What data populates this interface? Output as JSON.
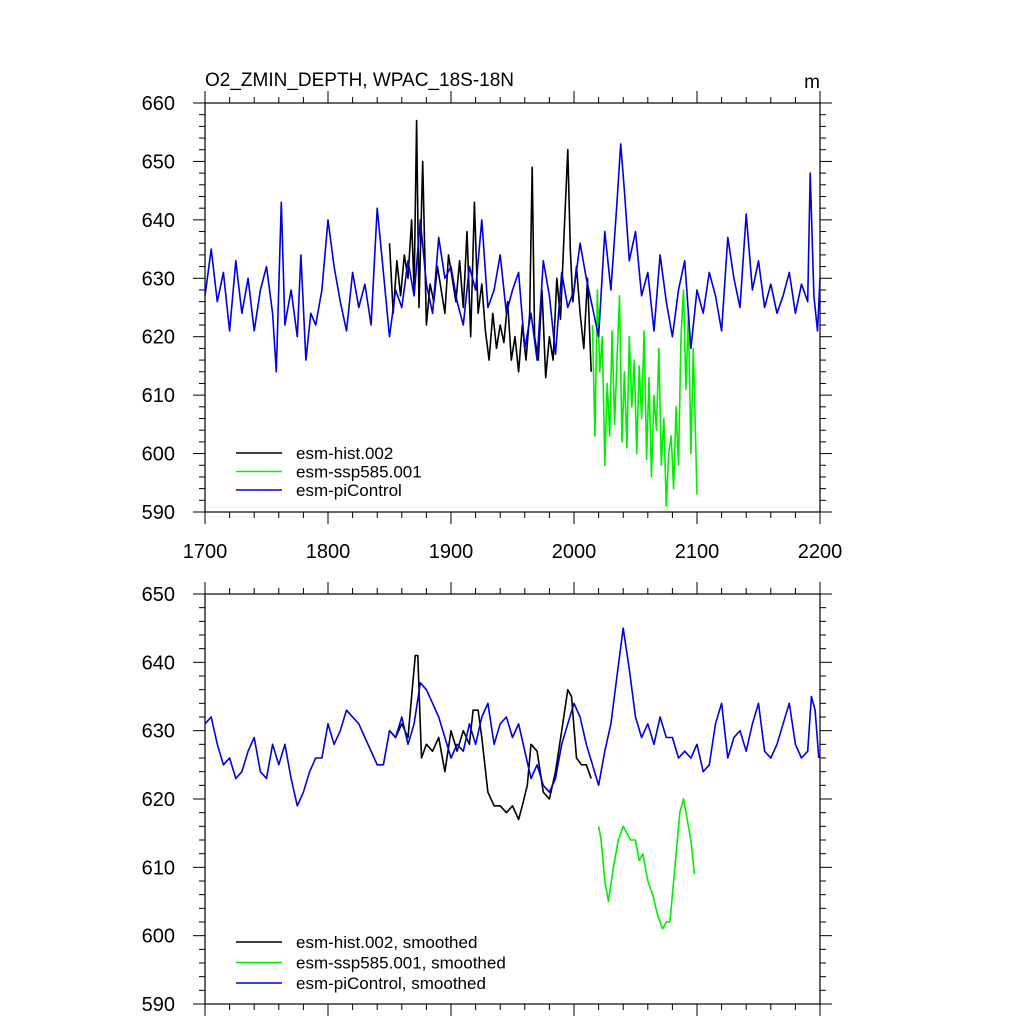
{
  "chart_data": [
    {
      "type": "line",
      "title": "O2_ZMIN_DEPTH, WPAC_18S-18N",
      "units": "m",
      "xlim": [
        1700,
        2200
      ],
      "ylim": [
        590,
        660
      ],
      "x_ticks": [
        1700,
        1800,
        1900,
        2000,
        2100,
        2200
      ],
      "x_tick_labels": [
        "1700",
        "1800",
        "1900",
        "2000",
        "2100",
        "2200"
      ],
      "y_ticks": [
        590,
        600,
        610,
        620,
        630,
        640,
        650,
        660
      ],
      "y_tick_labels": [
        "590",
        "600",
        "610",
        "620",
        "630",
        "640",
        "650",
        "660"
      ],
      "legend": [
        "esm-hist.002",
        "esm-ssp585.001",
        "esm-piControl"
      ],
      "series": [
        {
          "name": "esm-hist.002",
          "color": "#000000",
          "x": [
            1850,
            1853,
            1856,
            1859,
            1862,
            1865,
            1868,
            1870,
            1872,
            1874,
            1877,
            1880,
            1883,
            1886,
            1889,
            1892,
            1895,
            1898,
            1901,
            1904,
            1907,
            1910,
            1913,
            1916,
            1919,
            1922,
            1925,
            1928,
            1931,
            1934,
            1937,
            1940,
            1943,
            1946,
            1949,
            1952,
            1955,
            1958,
            1961,
            1964,
            1966,
            1968,
            1971,
            1974,
            1977,
            1980,
            1983,
            1986,
            1989,
            1992,
            1995,
            1997,
            1999,
            2002,
            2005,
            2008,
            2011,
            2014
          ],
          "values": [
            636,
            624,
            633,
            627,
            634,
            630,
            640,
            628,
            657,
            625,
            650,
            622,
            629,
            626,
            632,
            628,
            624,
            634,
            630,
            626,
            633,
            625,
            638,
            620,
            643,
            624,
            629,
            621,
            616,
            624,
            618,
            622,
            619,
            626,
            616,
            620,
            614,
            622,
            616,
            624,
            649,
            620,
            616,
            628,
            613,
            620,
            616,
            630,
            623,
            638,
            652,
            635,
            626,
            632,
            624,
            618,
            630,
            614
          ]
        },
        {
          "name": "esm-ssp585.001",
          "color": "#00ee00",
          "x": [
            2015,
            2017,
            2019,
            2021,
            2023,
            2025,
            2027,
            2029,
            2031,
            2033,
            2035,
            2037,
            2039,
            2041,
            2043,
            2045,
            2047,
            2049,
            2051,
            2053,
            2055,
            2057,
            2059,
            2061,
            2063,
            2065,
            2067,
            2069,
            2071,
            2073,
            2075,
            2077,
            2079,
            2081,
            2083,
            2085,
            2087,
            2089,
            2091,
            2093,
            2095,
            2097,
            2100
          ],
          "values": [
            622,
            603,
            628,
            614,
            620,
            598,
            612,
            603,
            621,
            605,
            616,
            627,
            602,
            614,
            601,
            620,
            608,
            616,
            600,
            615,
            606,
            621,
            599,
            613,
            596,
            610,
            604,
            618,
            598,
            606,
            591,
            600,
            603,
            594,
            608,
            598,
            620,
            628,
            611,
            624,
            600,
            618,
            593
          ]
        },
        {
          "name": "esm-piControl",
          "color": "#0000dd",
          "x": [
            1700,
            1705,
            1710,
            1715,
            1720,
            1725,
            1730,
            1735,
            1740,
            1745,
            1750,
            1755,
            1758,
            1762,
            1765,
            1770,
            1775,
            1778,
            1782,
            1786,
            1790,
            1795,
            1800,
            1805,
            1810,
            1815,
            1820,
            1825,
            1830,
            1835,
            1840,
            1845,
            1850,
            1855,
            1860,
            1865,
            1870,
            1875,
            1880,
            1885,
            1890,
            1895,
            1900,
            1905,
            1910,
            1915,
            1920,
            1925,
            1930,
            1935,
            1940,
            1945,
            1950,
            1955,
            1960,
            1965,
            1970,
            1975,
            1980,
            1985,
            1990,
            1995,
            2000,
            2005,
            2010,
            2015,
            2020,
            2025,
            2030,
            2035,
            2038,
            2041,
            2045,
            2050,
            2055,
            2060,
            2065,
            2070,
            2075,
            2080,
            2085,
            2090,
            2095,
            2100,
            2105,
            2110,
            2115,
            2120,
            2125,
            2130,
            2135,
            2140,
            2145,
            2150,
            2155,
            2160,
            2165,
            2170,
            2175,
            2180,
            2185,
            2190,
            2192,
            2195,
            2198,
            2200
          ],
          "values": [
            627,
            635,
            626,
            631,
            621,
            633,
            624,
            630,
            621,
            628,
            632,
            624,
            614,
            643,
            622,
            628,
            620,
            634,
            616,
            624,
            622,
            628,
            640,
            632,
            626,
            621,
            631,
            625,
            629,
            622,
            642,
            631,
            620,
            628,
            625,
            633,
            627,
            640,
            629,
            624,
            637,
            630,
            632,
            626,
            622,
            632,
            628,
            640,
            625,
            628,
            634,
            624,
            628,
            631,
            618,
            624,
            616,
            633,
            627,
            617,
            631,
            625,
            628,
            636,
            630,
            625,
            620,
            638,
            628,
            643,
            653,
            645,
            633,
            638,
            627,
            631,
            621,
            634,
            626,
            620,
            628,
            633,
            618,
            628,
            624,
            631,
            627,
            621,
            637,
            630,
            625,
            641,
            628,
            633,
            625,
            629,
            624,
            627,
            631,
            624,
            629,
            626,
            648,
            627,
            621,
            630
          ]
        }
      ]
    },
    {
      "type": "line",
      "title": "",
      "xlim": [
        1700,
        2200
      ],
      "ylim": [
        590,
        650
      ],
      "x_ticks": [
        1700,
        1800,
        1900,
        2000,
        2100,
        2200
      ],
      "y_ticks": [
        590,
        600,
        610,
        620,
        630,
        640,
        650
      ],
      "y_tick_labels": [
        "590",
        "600",
        "610",
        "620",
        "630",
        "640",
        "650"
      ],
      "legend": [
        "esm-hist.002, smoothed",
        "esm-ssp585.001, smoothed",
        "esm-piControl, smoothed"
      ],
      "series": [
        {
          "name": "esm-hist.002, smoothed",
          "color": "#000000",
          "x": [
            1850,
            1855,
            1860,
            1865,
            1868,
            1871,
            1873,
            1876,
            1880,
            1885,
            1890,
            1895,
            1900,
            1905,
            1910,
            1915,
            1918,
            1922,
            1925,
            1930,
            1935,
            1940,
            1945,
            1950,
            1955,
            1958,
            1962,
            1965,
            1970,
            1975,
            1980,
            1985,
            1990,
            1995,
            1998,
            2002,
            2006,
            2010,
            2014
          ],
          "values": [
            630,
            629,
            631,
            629,
            635,
            641,
            641,
            626,
            628,
            627,
            629,
            624,
            630,
            627,
            630,
            628,
            633,
            633,
            629,
            621,
            619,
            619,
            618,
            619,
            617,
            619,
            622,
            628,
            627,
            621,
            620,
            624,
            630,
            636,
            635,
            626,
            625,
            625,
            623
          ]
        },
        {
          "name": "esm-ssp585.001, smoothed",
          "color": "#00ee00",
          "x": [
            2020,
            2022,
            2025,
            2028,
            2032,
            2036,
            2040,
            2043,
            2046,
            2050,
            2053,
            2056,
            2060,
            2064,
            2068,
            2072,
            2075,
            2078,
            2082,
            2086,
            2089,
            2092,
            2095,
            2098
          ],
          "values": [
            616,
            614,
            608,
            605,
            610,
            614,
            616,
            615,
            614,
            614,
            611,
            612,
            608,
            606,
            603,
            601,
            602,
            602,
            610,
            618,
            620,
            617,
            614,
            609
          ]
        },
        {
          "name": "esm-piControl, smoothed",
          "color": "#0000dd",
          "x": [
            1700,
            1705,
            1710,
            1715,
            1720,
            1725,
            1730,
            1735,
            1740,
            1745,
            1750,
            1755,
            1760,
            1765,
            1770,
            1775,
            1780,
            1785,
            1790,
            1795,
            1800,
            1805,
            1810,
            1815,
            1820,
            1825,
            1830,
            1835,
            1840,
            1845,
            1850,
            1855,
            1860,
            1865,
            1870,
            1875,
            1880,
            1885,
            1890,
            1895,
            1900,
            1905,
            1910,
            1915,
            1920,
            1925,
            1930,
            1935,
            1940,
            1945,
            1950,
            1955,
            1960,
            1965,
            1970,
            1975,
            1980,
            1985,
            1990,
            1995,
            2000,
            2005,
            2010,
            2015,
            2020,
            2025,
            2030,
            2035,
            2040,
            2045,
            2050,
            2055,
            2060,
            2065,
            2070,
            2075,
            2080,
            2085,
            2090,
            2095,
            2100,
            2105,
            2110,
            2115,
            2120,
            2125,
            2130,
            2135,
            2140,
            2145,
            2150,
            2155,
            2160,
            2165,
            2170,
            2175,
            2180,
            2185,
            2190,
            2193,
            2196,
            2199
          ],
          "values": [
            631,
            632,
            628,
            625,
            626,
            623,
            624,
            627,
            629,
            624,
            623,
            628,
            625,
            628,
            623,
            619,
            621,
            624,
            626,
            626,
            631,
            628,
            630,
            633,
            632,
            631,
            629,
            627,
            625,
            625,
            630,
            629,
            632,
            628,
            631,
            637,
            636,
            634,
            632,
            629,
            626,
            628,
            627,
            631,
            628,
            632,
            634,
            628,
            631,
            632,
            629,
            631,
            627,
            623,
            625,
            622,
            621,
            623,
            628,
            631,
            634,
            632,
            628,
            625,
            622,
            627,
            631,
            638,
            645,
            639,
            632,
            629,
            631,
            628,
            632,
            629,
            629,
            626,
            627,
            626,
            628,
            624,
            625,
            631,
            634,
            626,
            629,
            630,
            627,
            631,
            634,
            627,
            626,
            628,
            631,
            634,
            628,
            626,
            627,
            635,
            633,
            626
          ]
        }
      ]
    }
  ]
}
